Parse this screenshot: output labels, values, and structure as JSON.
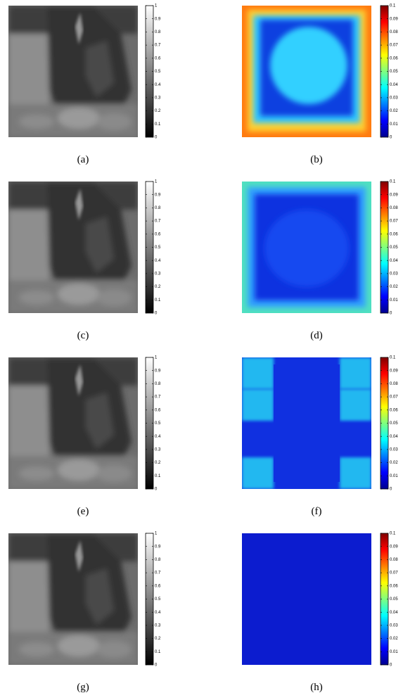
{
  "panels": [
    {
      "caption": "(a)",
      "colorbar": {
        "colormap": "gray",
        "lim": [
          0,
          1
        ],
        "ticks": [
          0,
          0.1,
          0.2,
          0.3,
          0.4,
          0.5,
          0.6,
          0.7,
          0.8,
          0.9,
          1
        ]
      }
    },
    {
      "caption": "(b)",
      "colorbar": {
        "colormap": "jet",
        "lim": [
          0,
          0.1
        ],
        "ticks": [
          0,
          0.01,
          0.02,
          0.03,
          0.04,
          0.05,
          0.06,
          0.07,
          0.08,
          0.09,
          0.1
        ]
      }
    },
    {
      "caption": "(c)",
      "colorbar": {
        "colormap": "gray",
        "lim": [
          0,
          1
        ],
        "ticks": [
          0,
          0.1,
          0.2,
          0.3,
          0.4,
          0.5,
          0.6,
          0.7,
          0.8,
          0.9,
          1
        ]
      }
    },
    {
      "caption": "(d)",
      "colorbar": {
        "colormap": "jet",
        "lim": [
          0,
          0.1
        ],
        "ticks": [
          0,
          0.01,
          0.02,
          0.03,
          0.04,
          0.05,
          0.06,
          0.07,
          0.08,
          0.09,
          0.1
        ]
      }
    },
    {
      "caption": "(e)",
      "colorbar": {
        "colormap": "gray",
        "lim": [
          0,
          1
        ],
        "ticks": [
          0,
          0.1,
          0.2,
          0.3,
          0.4,
          0.5,
          0.6,
          0.7,
          0.8,
          0.9,
          1
        ]
      }
    },
    {
      "caption": "(f)",
      "colorbar": {
        "colormap": "jet",
        "lim": [
          0,
          0.1
        ],
        "ticks": [
          0,
          0.01,
          0.02,
          0.03,
          0.04,
          0.05,
          0.06,
          0.07,
          0.08,
          0.09,
          0.1
        ]
      }
    },
    {
      "caption": "(g)",
      "colorbar": {
        "colormap": "gray",
        "lim": [
          0,
          1
        ],
        "ticks": [
          0,
          0.1,
          0.2,
          0.3,
          0.4,
          0.5,
          0.6,
          0.7,
          0.8,
          0.9,
          1
        ]
      }
    },
    {
      "caption": "(h)",
      "colorbar": {
        "colormap": "jet",
        "lim": [
          0,
          0.1
        ],
        "ticks": [
          0,
          0.01,
          0.02,
          0.03,
          0.04,
          0.05,
          0.06,
          0.07,
          0.08,
          0.09,
          0.1
        ]
      }
    }
  ]
}
